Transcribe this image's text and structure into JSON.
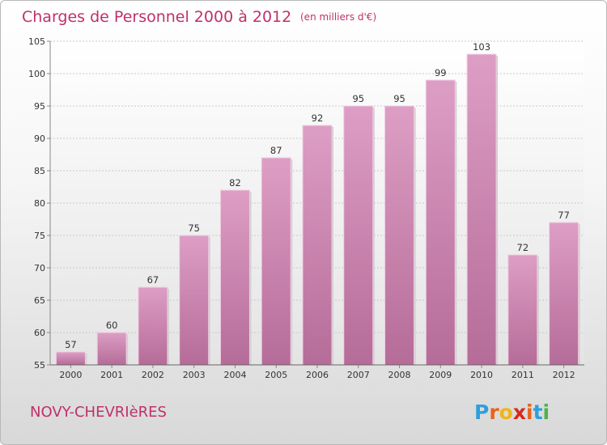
{
  "chart_data": {
    "type": "bar",
    "title": "Charges de Personnel 2000 à 2012",
    "subtitle": "(en milliers d'€)",
    "categories": [
      "2000",
      "2001",
      "2002",
      "2003",
      "2004",
      "2005",
      "2006",
      "2007",
      "2008",
      "2009",
      "2010",
      "2011",
      "2012"
    ],
    "values": [
      57,
      60,
      67,
      75,
      82,
      87,
      92,
      95,
      95,
      99,
      103,
      72,
      77
    ],
    "ylim": [
      55,
      105
    ],
    "yticks": [
      55,
      60,
      65,
      70,
      75,
      80,
      85,
      90,
      95,
      100,
      105
    ],
    "grid": true,
    "bar_color": "#dd9ec5",
    "bar_color_dark": "#b56c98"
  },
  "town_name": "NOVY-CHEVRIèRES",
  "logo": {
    "letters": [
      "P",
      "r",
      "o",
      "x",
      "i",
      "t",
      "i"
    ],
    "colors": [
      "#2f9fdc",
      "#e8631c",
      "#f2b416",
      "#d62a1c",
      "#e8631c",
      "#2f9fdc",
      "#4db34a"
    ]
  }
}
